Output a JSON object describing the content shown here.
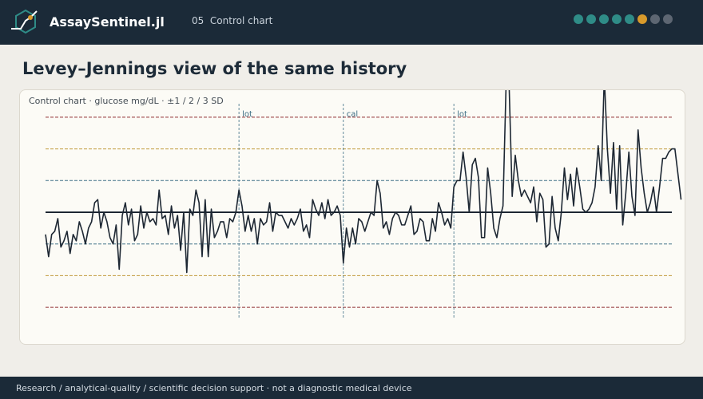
{
  "header": {
    "app_title": "AssaySentinel.jl",
    "step_number": "05",
    "step_label": "Control chart",
    "progress_dots": [
      "#2f8c87",
      "#2f8c87",
      "#2f8c87",
      "#2f8c87",
      "#2f8c87",
      "#d89a2b",
      "#5d6672",
      "#5d6672"
    ]
  },
  "page": {
    "title": "Levey–Jennings view of the same history"
  },
  "chart": {
    "caption": "Control chart  ·  glucose mg/dL  ·  ±1 / 2 / 3 SD",
    "events": [
      {
        "label": "lot",
        "run": 63
      },
      {
        "label": "cal",
        "run": 97
      },
      {
        "label": "lot",
        "run": 133
      }
    ],
    "colors": {
      "line": "#1d2733",
      "mean": "#1d2733",
      "sd1": "#3e6f85",
      "sd2": "#c09a3c",
      "sd3": "#8e2e30",
      "event": "#3e6f85"
    }
  },
  "chart_data": {
    "type": "line",
    "x_range": [
      0,
      204
    ],
    "y_range_sd": [
      -3,
      3
    ],
    "series": [
      {
        "values": [
          -0.7,
          -1.4,
          -0.7,
          -0.6,
          -0.2,
          -1.1,
          -0.9,
          -0.6,
          -1.3,
          -0.7,
          -0.9,
          -0.3,
          -0.6,
          -1.0,
          -0.5,
          -0.3,
          0.3,
          0.4,
          -0.5,
          0.0,
          -0.3,
          -0.8,
          -1.0,
          -0.4,
          -1.8,
          -0.1,
          0.3,
          -0.4,
          0.1,
          -0.9,
          -0.7,
          0.2,
          -0.5,
          0.0,
          -0.3,
          -0.2,
          -0.4,
          0.7,
          -0.2,
          -0.1,
          -0.7,
          0.2,
          -0.5,
          -0.1,
          -1.2,
          0.0,
          -1.9,
          0.1,
          -0.1,
          0.7,
          0.3,
          -1.4,
          0.4,
          -1.4,
          0.1,
          -0.8,
          -0.6,
          -0.3,
          -0.3,
          -0.8,
          -0.2,
          -0.3,
          0.0,
          0.7,
          0.2,
          -0.6,
          -0.1,
          -0.6,
          -0.2,
          -1.0,
          -0.2,
          -0.4,
          -0.3,
          0.3,
          -0.6,
          0.0,
          -0.1,
          -0.1,
          -0.3,
          -0.5,
          -0.2,
          -0.4,
          -0.2,
          0.1,
          -0.6,
          -0.4,
          -0.8,
          0.4,
          0.1,
          -0.1,
          0.3,
          -0.2,
          0.4,
          -0.1,
          0.0,
          0.2,
          -0.1,
          -1.6,
          -0.5,
          -1.1,
          -0.5,
          -1.0,
          -0.2,
          -0.3,
          -0.6,
          -0.3,
          0.0,
          -0.1,
          1.0,
          0.6,
          -0.5,
          -0.3,
          -0.7,
          -0.2,
          0.0,
          -0.1,
          -0.4,
          -0.4,
          -0.1,
          0.2,
          -0.7,
          -0.6,
          -0.2,
          -0.3,
          -0.9,
          -0.9,
          -0.2,
          -0.6,
          0.3,
          0.0,
          -0.4,
          -0.2,
          -0.5,
          0.8,
          1.0,
          1.0,
          1.9,
          1.1,
          0.0,
          1.5,
          1.7,
          1.1,
          -0.8,
          -0.8,
          1.4,
          0.6,
          -0.5,
          -0.8,
          -0.2,
          0.2,
          4.0,
          4.0,
          0.5,
          1.8,
          1.0,
          0.5,
          0.7,
          0.5,
          0.3,
          0.8,
          -0.3,
          0.6,
          0.4,
          -1.1,
          -1.0,
          0.5,
          -0.5,
          -0.9,
          0.0,
          1.4,
          0.4,
          1.2,
          0.2,
          1.4,
          0.8,
          0.1,
          0.0,
          0.1,
          0.3,
          0.8,
          2.1,
          1.0,
          4.3,
          2.0,
          0.6,
          2.2,
          0.1,
          2.1,
          -0.4,
          0.6,
          1.9,
          0.5,
          -0.1,
          2.6,
          1.4,
          0.6,
          0.0,
          0.3,
          0.8,
          0.0,
          0.8,
          1.7,
          1.7,
          1.9,
          2.0,
          2.0,
          1.2,
          0.4
        ]
      }
    ]
  },
  "footer": {
    "text": "Research / analytical-quality / scientific decision support  ·  not a diagnostic medical device"
  }
}
